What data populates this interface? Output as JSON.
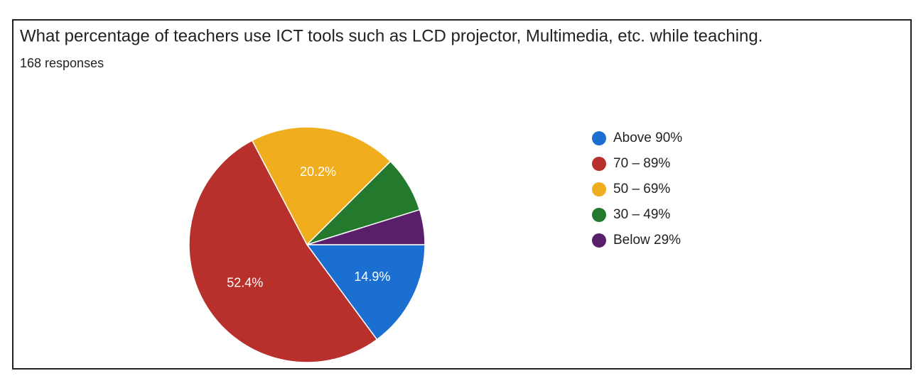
{
  "chart_data": {
    "type": "pie",
    "title": "What percentage of teachers use ICT tools such as LCD projector, Multimedia, etc. while teaching.",
    "subtitle": "168 responses",
    "categories": [
      "Above 90%",
      "70 – 89%",
      "50 – 69%",
      "30 – 49%",
      "Below 29%"
    ],
    "values": [
      14.9,
      52.4,
      20.2,
      7.7,
      4.8
    ],
    "value_labels": [
      "14.9%",
      "52.4%",
      "20.2%",
      null,
      null
    ],
    "colors": [
      "#1a6fd1",
      "#b8302b",
      "#f0ae1f",
      "#237a2c",
      "#5a1f6b"
    ],
    "legend": "right"
  }
}
